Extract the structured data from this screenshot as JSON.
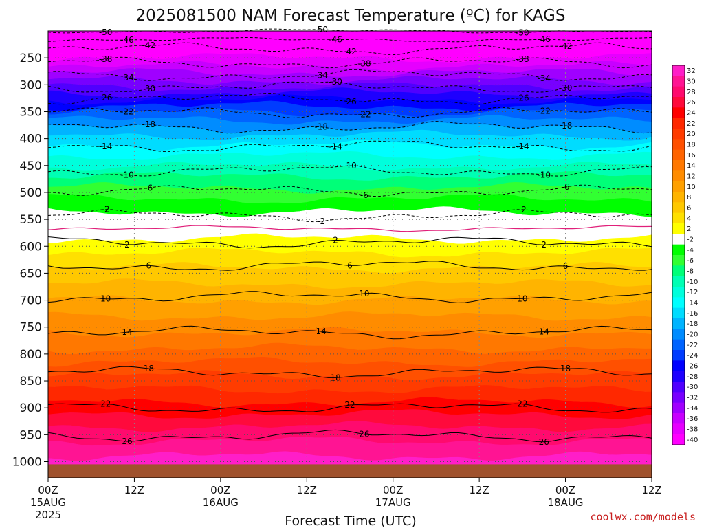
{
  "chart_data": {
    "type": "heatmap",
    "title": "2025081500 NAM Forecast Temperature (ºC) for KAGS",
    "xlabel": "Forecast Time (UTC)",
    "credit": "coolwx.com/models",
    "x_ticks": [
      {
        "hours": 0,
        "label": "00Z",
        "sub": "15AUG",
        "sub2": "2025"
      },
      {
        "hours": 12,
        "label": "12Z",
        "sub": "",
        "sub2": ""
      },
      {
        "hours": 24,
        "label": "00Z",
        "sub": "16AUG",
        "sub2": ""
      },
      {
        "hours": 36,
        "label": "12Z",
        "sub": "",
        "sub2": ""
      },
      {
        "hours": 48,
        "label": "00Z",
        "sub": "17AUG",
        "sub2": ""
      },
      {
        "hours": 60,
        "label": "12Z",
        "sub": "",
        "sub2": ""
      },
      {
        "hours": 72,
        "label": "00Z",
        "sub": "18AUG",
        "sub2": ""
      },
      {
        "hours": 84,
        "label": "12Z",
        "sub": "",
        "sub2": ""
      }
    ],
    "x_range_hours": [
      0,
      84
    ],
    "y_ticks": [
      "250",
      "300",
      "350",
      "400",
      "450",
      "500",
      "550",
      "600",
      "650",
      "700",
      "750",
      "800",
      "850",
      "900",
      "950",
      "1000"
    ],
    "y_range_hpa": [
      200,
      1030
    ],
    "ground_hpa": 1005,
    "colorbar": {
      "labels": [
        "32",
        "30",
        "28",
        "26",
        "24",
        "22",
        "20",
        "18",
        "16",
        "14",
        "12",
        "10",
        "8",
        "6",
        "4",
        "2",
        "-2",
        "-4",
        "-6",
        "-8",
        "-10",
        "-12",
        "-14",
        "-16",
        "-18",
        "-20",
        "-22",
        "-24",
        "-26",
        "-28",
        "-30",
        "-32",
        "-34",
        "-36",
        "-38",
        "-40"
      ],
      "colors": [
        "#ff1ec8",
        "#ff1493",
        "#ff0a6e",
        "#ff0a3c",
        "#ff0000",
        "#ff2800",
        "#ff3c00",
        "#ff5000",
        "#ff6400",
        "#ff7800",
        "#ff8c00",
        "#ffa000",
        "#ffb400",
        "#ffc800",
        "#ffe000",
        "#ffff00",
        "#ffffff",
        "#00ff00",
        "#32ff32",
        "#00ff78",
        "#00ffb4",
        "#00ffdc",
        "#00ffff",
        "#00dcff",
        "#00b4ff",
        "#008cff",
        "#0064ff",
        "#003cff",
        "#0000ff",
        "#1e00ff",
        "#5000ff",
        "#7800ff",
        "#a000ff",
        "#c800ff",
        "#e600ff",
        "#ff00ff"
      ]
    },
    "contours": [
      {
        "label": "-50",
        "p0": 200
      },
      {
        "label": "-46",
        "p0": 216
      },
      {
        "label": "-42",
        "p0": 233
      },
      {
        "label": "-38",
        "p0": 259
      },
      {
        "label": "-34",
        "p0": 282
      },
      {
        "label": "-30",
        "p0": 304
      },
      {
        "label": "-26",
        "p0": 326
      },
      {
        "label": "-22",
        "p0": 352
      },
      {
        "label": "-18",
        "p0": 379
      },
      {
        "label": "-14",
        "p0": 414
      },
      {
        "label": "-10",
        "p0": 460
      },
      {
        "label": "-6",
        "p0": 497
      },
      {
        "label": "-2",
        "p0": 543
      },
      {
        "label": "2",
        "p0": 593
      },
      {
        "label": "6",
        "p0": 636
      },
      {
        "label": "10",
        "p0": 694
      },
      {
        "label": "14",
        "p0": 760
      },
      {
        "label": "18",
        "p0": 834
      },
      {
        "label": "22",
        "p0": 900
      },
      {
        "label": "26",
        "p0": 952
      }
    ]
  }
}
